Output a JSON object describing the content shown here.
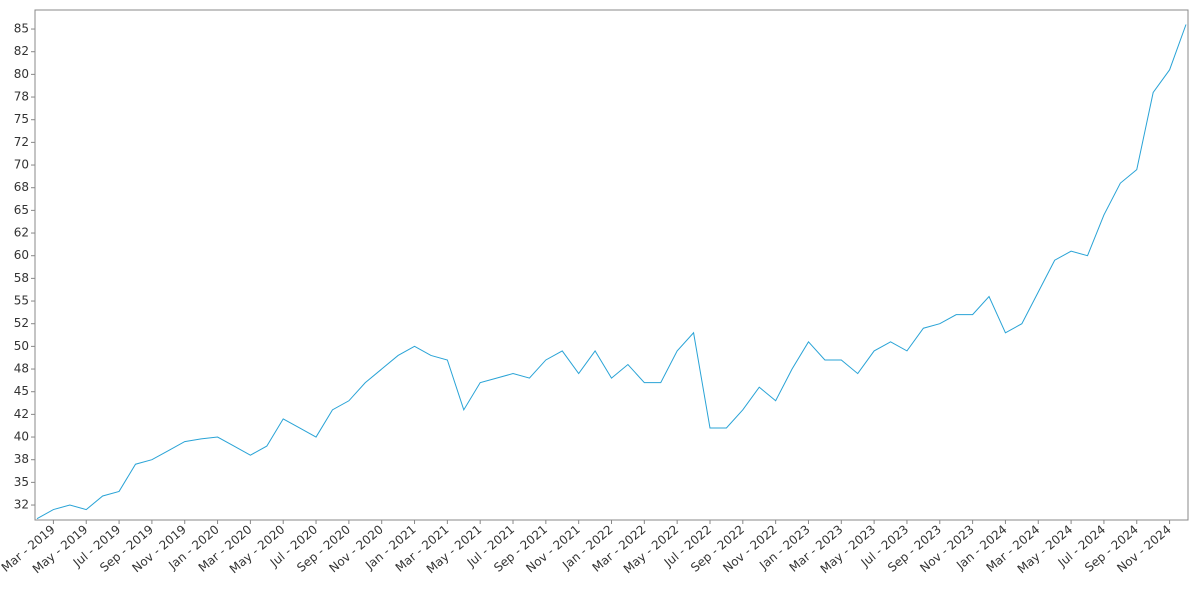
{
  "chart_data": {
    "type": "line",
    "categories": [
      null,
      "Mar - 2019",
      null,
      "May - 2019",
      null,
      "Jul - 2019",
      null,
      "Sep - 2019",
      null,
      "Nov - 2019",
      null,
      "Jan - 2020",
      null,
      "Mar - 2020",
      null,
      "May - 2020",
      null,
      "Jul - 2020",
      null,
      "Sep - 2020",
      null,
      "Nov - 2020",
      null,
      "Jan - 2021",
      null,
      "Mar - 2021",
      null,
      "May - 2021",
      null,
      "Jul - 2021",
      null,
      "Sep - 2021",
      null,
      "Nov - 2021",
      null,
      "Jan - 2022",
      null,
      "Mar - 2022",
      null,
      "May - 2022",
      null,
      "Jul - 2022",
      null,
      "Sep - 2022",
      null,
      "Nov - 2022",
      null,
      "Jan - 2023",
      null,
      "Mar - 2023",
      null,
      "May - 2023",
      null,
      "Jul - 2023",
      null,
      "Sep - 2023",
      null,
      "Nov - 2023",
      null,
      "Jan - 2024",
      null,
      "Mar - 2024",
      null,
      "May - 2024",
      null,
      "Jul - 2024",
      null,
      "Sep - 2024",
      null,
      "Nov - 2024",
      null
    ],
    "series": [
      {
        "color": "#29a3d6",
        "values": [
          31,
          32,
          32.5,
          32,
          33.5,
          34,
          37,
          37.5,
          38.5,
          39.5,
          39.8,
          40,
          39,
          38,
          39,
          42,
          41,
          40,
          43,
          44,
          46,
          47.5,
          49,
          50,
          49,
          48.5,
          43,
          46,
          46.5,
          47,
          46.5,
          48.5,
          49.5,
          47,
          49.5,
          46.5,
          48,
          46,
          46,
          49.5,
          51.5,
          41,
          41,
          43,
          45.5,
          44,
          47.5,
          50.5,
          48.5,
          48.5,
          47,
          49.5,
          50.5,
          49.5,
          52,
          52.5,
          53.5,
          53.5,
          55.5,
          51.5,
          52.5,
          56,
          59.5,
          60.5,
          60,
          64.5,
          68,
          69.5,
          78,
          80.5,
          85.5
        ]
      }
    ],
    "ylim": [
      30.85,
      87.1
    ],
    "yticks": [
      {
        "value": 32.5,
        "label": "32"
      },
      35,
      {
        "value": 37.5,
        "label": "38"
      },
      40,
      {
        "value": 42.5,
        "label": "42"
      },
      45,
      {
        "value": 47.5,
        "label": "48"
      },
      50,
      {
        "value": 52.5,
        "label": "52"
      },
      55,
      {
        "value": 57.5,
        "label": "58"
      },
      60,
      {
        "value": 62.5,
        "label": "62"
      },
      65,
      {
        "value": 67.5,
        "label": "68"
      },
      70,
      {
        "value": 72.5,
        "label": "72"
      },
      75,
      {
        "value": 77.5,
        "label": "78"
      },
      80,
      {
        "value": 82.5,
        "label": "82"
      },
      85
    ]
  }
}
